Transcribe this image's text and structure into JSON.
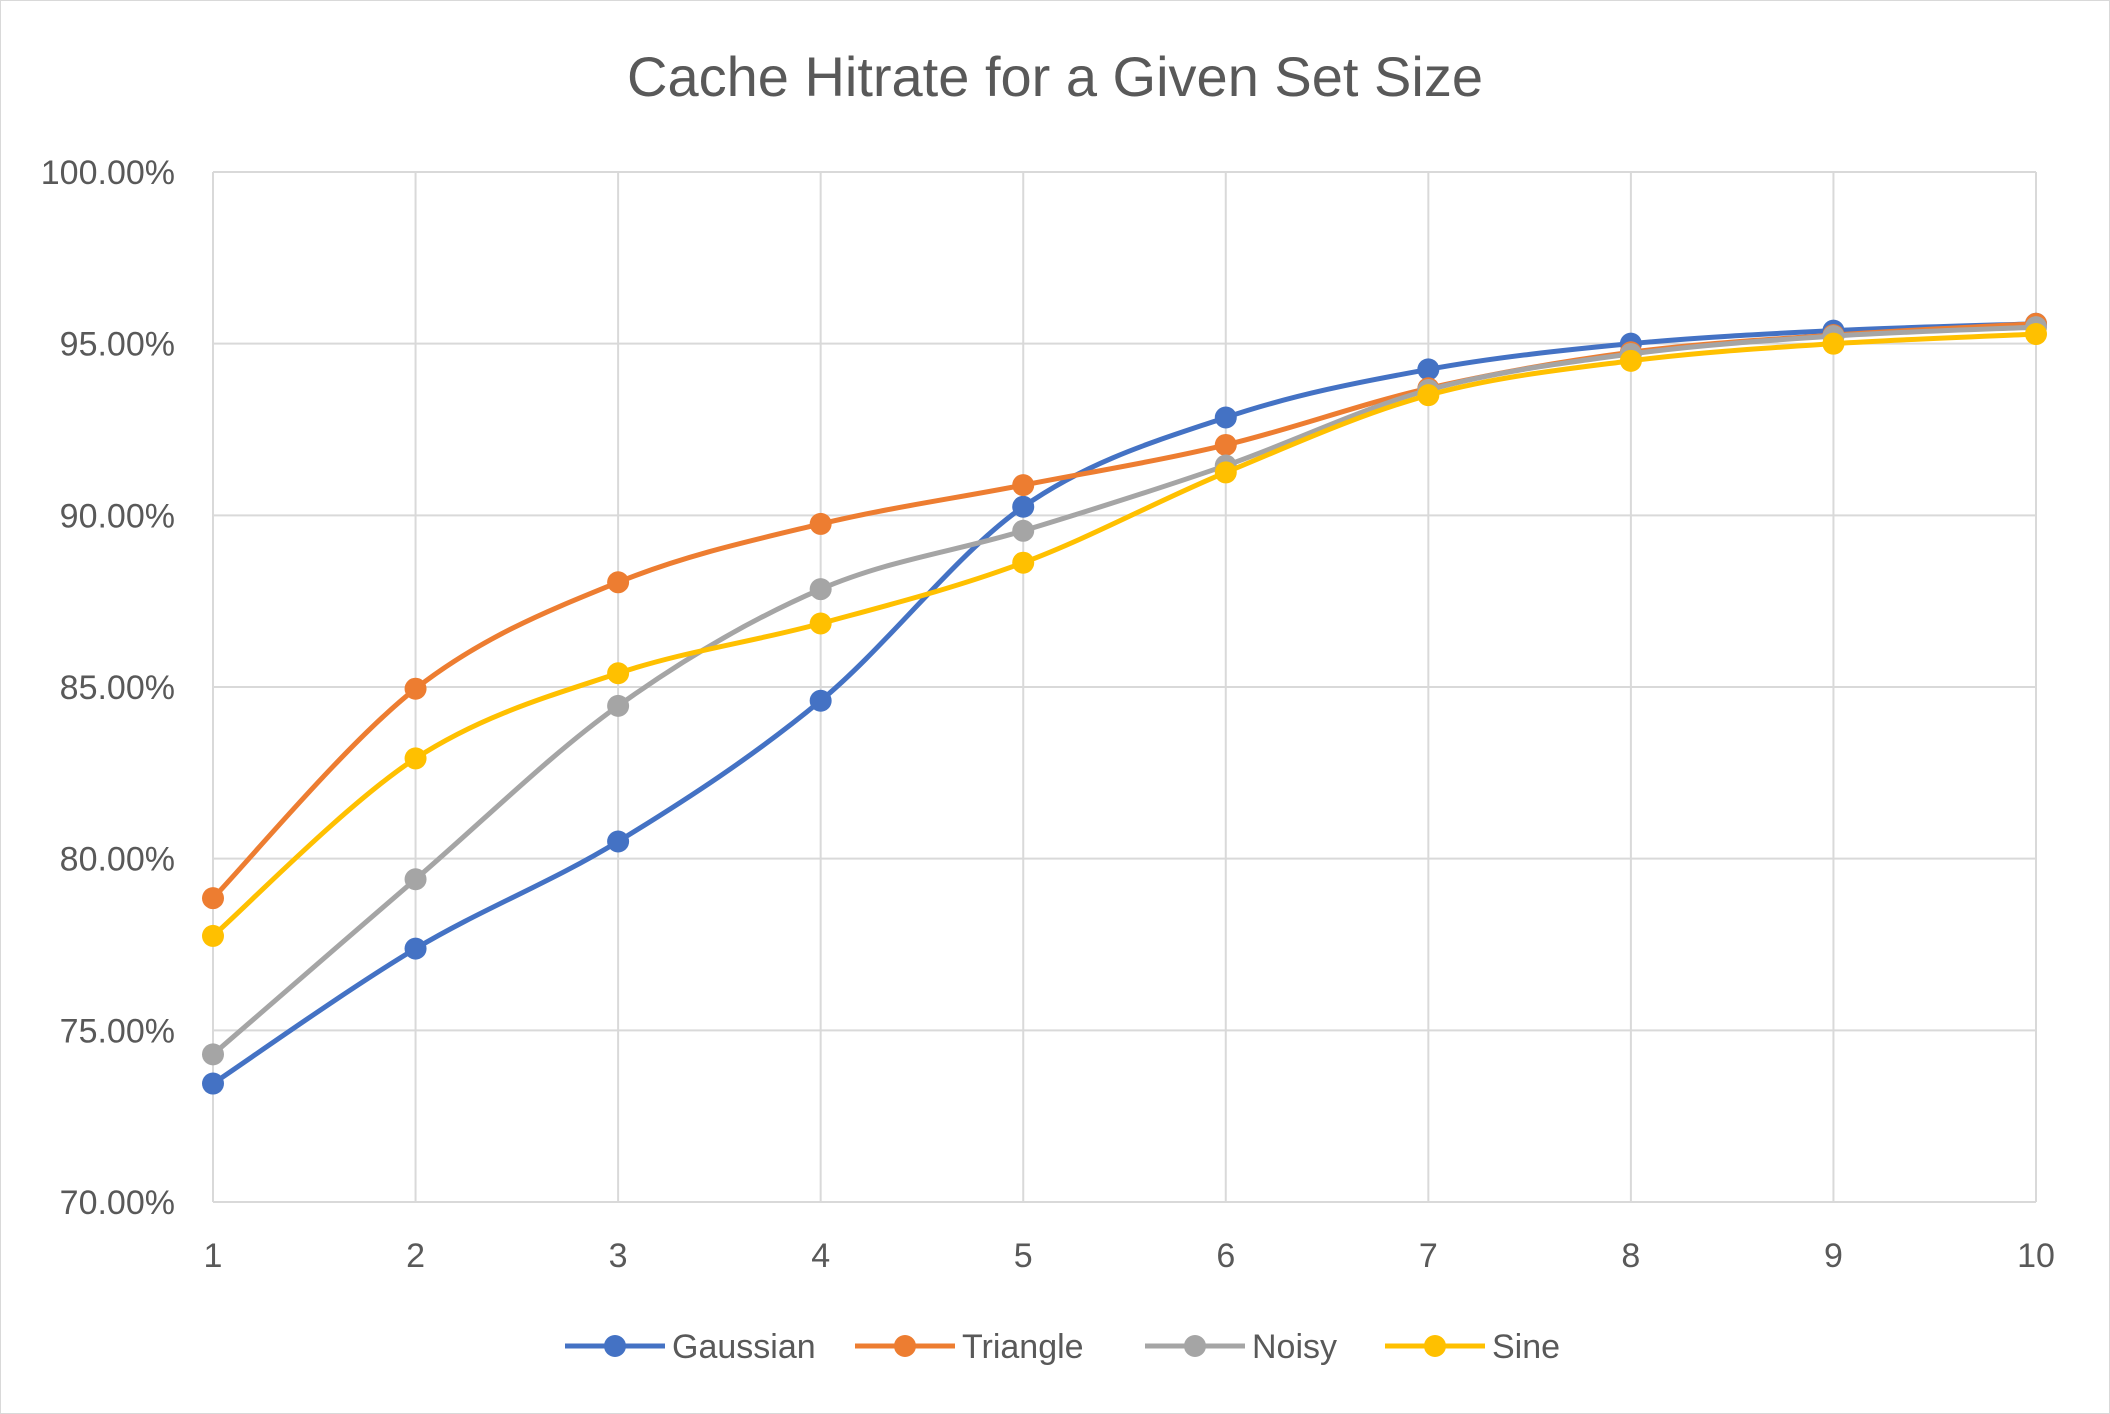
{
  "chart_data": {
    "type": "line",
    "title": "Cache Hitrate for a Given Set Size",
    "xlabel": "",
    "ylabel": "",
    "x": [
      1,
      2,
      3,
      4,
      5,
      6,
      7,
      8,
      9,
      10
    ],
    "x_tick_labels": [
      "1",
      "2",
      "3",
      "4",
      "5",
      "6",
      "7",
      "8",
      "9",
      "10"
    ],
    "ylim": [
      0.7,
      1.0
    ],
    "y_ticks": [
      0.7,
      0.75,
      0.8,
      0.85,
      0.9,
      0.95,
      1.0
    ],
    "y_tick_labels": [
      "70.00%",
      "75.00%",
      "80.00%",
      "85.00%",
      "90.00%",
      "95.00%",
      "100.00%"
    ],
    "grid": true,
    "smooth": true,
    "legend_position": "bottom",
    "series": [
      {
        "name": "Gaussian",
        "color": "#4472C4",
        "values": [
          0.7345,
          0.7738,
          0.805,
          0.846,
          0.9025,
          0.9285,
          0.9425,
          0.95,
          0.9538,
          0.9558
        ]
      },
      {
        "name": "Triangle",
        "color": "#ED7D31",
        "values": [
          0.7885,
          0.8495,
          0.8805,
          0.8975,
          0.9088,
          0.9205,
          0.937,
          0.9475,
          0.9525,
          0.9558
        ]
      },
      {
        "name": "Noisy",
        "color": "#A5A5A5",
        "values": [
          0.743,
          0.794,
          0.8445,
          0.8785,
          0.8955,
          0.9145,
          0.9365,
          0.947,
          0.9522,
          0.9548
        ]
      },
      {
        "name": "Sine",
        "color": "#FFC000",
        "values": [
          0.7775,
          0.8292,
          0.854,
          0.8685,
          0.8862,
          0.9125,
          0.935,
          0.945,
          0.95,
          0.9528
        ]
      }
    ]
  }
}
